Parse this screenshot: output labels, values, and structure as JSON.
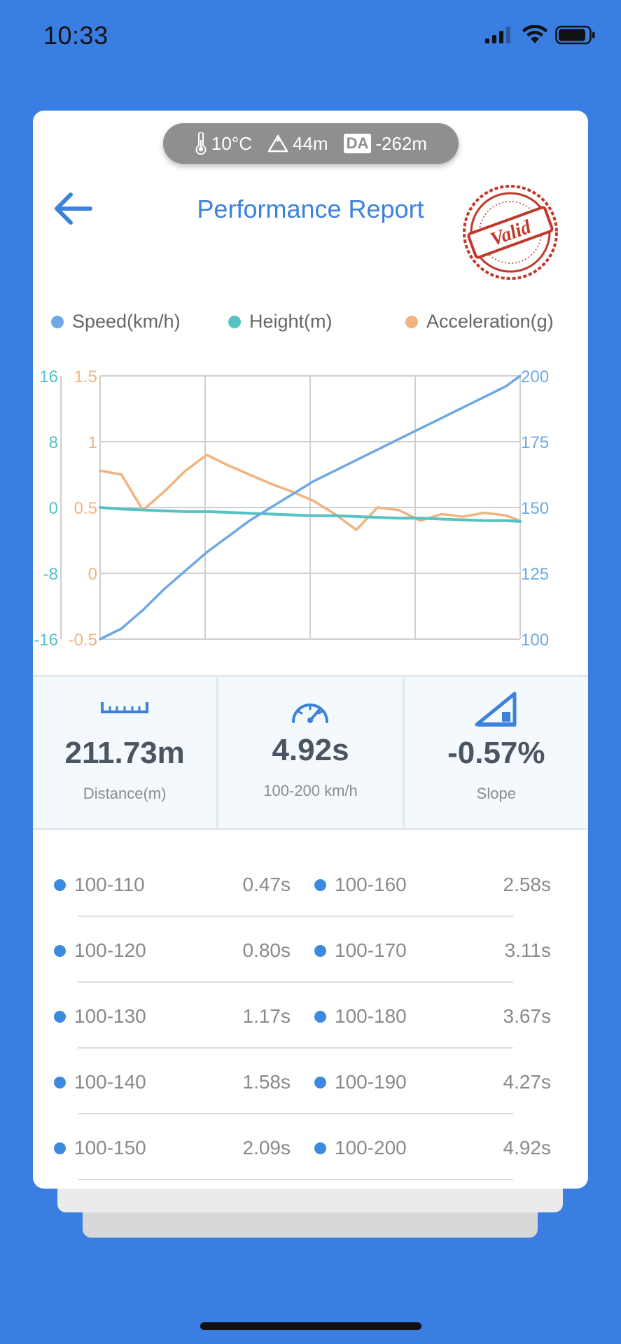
{
  "status_bar": {
    "time": "10:33"
  },
  "weather": {
    "temperature": "10°C",
    "altitude": "44m",
    "da_label": "DA",
    "density_altitude": "-262m"
  },
  "header": {
    "title": "Performance Report",
    "stamp_text": "Valid"
  },
  "legend": [
    {
      "label": "Speed(km/h)",
      "color": "#6ea9e6"
    },
    {
      "label": "Height(m)",
      "color": "#55c2c3"
    },
    {
      "label": "Acceleration(g)",
      "color": "#f2b37e"
    }
  ],
  "chart_data": {
    "type": "line",
    "x": [
      0,
      0.25,
      0.5,
      0.75,
      1,
      1.25,
      1.5,
      1.75,
      2,
      2.25,
      2.5,
      2.75,
      3,
      3.25,
      3.5,
      3.75,
      4,
      4.25,
      4.5,
      4.75,
      4.92
    ],
    "series": [
      {
        "name": "Speed(km/h)",
        "axis": "right",
        "color": "#6ea9e6",
        "values": [
          100,
          104,
          111,
          119,
          126,
          133,
          139,
          145,
          150,
          155,
          160,
          164,
          168,
          172,
          176,
          180,
          184,
          188,
          192,
          196,
          200
        ]
      },
      {
        "name": "Height(m)",
        "axis": "left-outer",
        "color": "#55c2c3",
        "values": [
          0.0,
          -0.2,
          -0.3,
          -0.4,
          -0.5,
          -0.5,
          -0.6,
          -0.7,
          -0.8,
          -0.9,
          -1.0,
          -1.0,
          -1.1,
          -1.2,
          -1.3,
          -1.3,
          -1.4,
          -1.5,
          -1.6,
          -1.6,
          -1.7
        ]
      },
      {
        "name": "Acceleration(g)",
        "axis": "left-inner",
        "color": "#f2b37e",
        "values": [
          0.78,
          0.75,
          0.48,
          0.62,
          0.78,
          0.9,
          0.82,
          0.75,
          0.68,
          0.62,
          0.55,
          0.45,
          0.33,
          0.5,
          0.48,
          0.4,
          0.45,
          0.43,
          0.46,
          0.44,
          0.4
        ]
      }
    ],
    "axes": {
      "left_outer": {
        "ticks": [
          "16",
          "8",
          "0",
          "-8",
          "-16"
        ],
        "ylim": [
          -16,
          16
        ],
        "color": "#55c2c3"
      },
      "left_inner": {
        "ticks": [
          "1.5",
          "1",
          "0.5",
          "0",
          "-0.5"
        ],
        "ylim": [
          -0.5,
          1.5
        ],
        "color": "#f2b37e"
      },
      "right": {
        "ticks": [
          "200",
          "175",
          "150",
          "125",
          "100"
        ],
        "ylim": [
          100,
          200
        ],
        "color": "#6ea9e6"
      }
    },
    "grid": true
  },
  "stats": [
    {
      "value": "211.73m",
      "label": "Distance(m)",
      "icon": "ruler-icon"
    },
    {
      "value": "4.92s",
      "label": "100-200 km/h",
      "icon": "speedometer-icon"
    },
    {
      "value": "-0.57%",
      "label": "Slope",
      "icon": "slope-icon"
    }
  ],
  "splits": [
    {
      "left_range": "100-110",
      "left_time": "0.47s",
      "right_range": "100-160",
      "right_time": "2.58s"
    },
    {
      "left_range": "100-120",
      "left_time": "0.80s",
      "right_range": "100-170",
      "right_time": "3.11s"
    },
    {
      "left_range": "100-130",
      "left_time": "1.17s",
      "right_range": "100-180",
      "right_time": "3.67s"
    },
    {
      "left_range": "100-140",
      "left_time": "1.58s",
      "right_range": "100-190",
      "right_time": "4.27s"
    },
    {
      "left_range": "100-150",
      "left_time": "2.09s",
      "right_range": "100-200",
      "right_time": "4.92s"
    }
  ],
  "colors": {
    "background": "#3a7ee2",
    "accent": "#3c82db",
    "stamp": "#c0392b"
  }
}
